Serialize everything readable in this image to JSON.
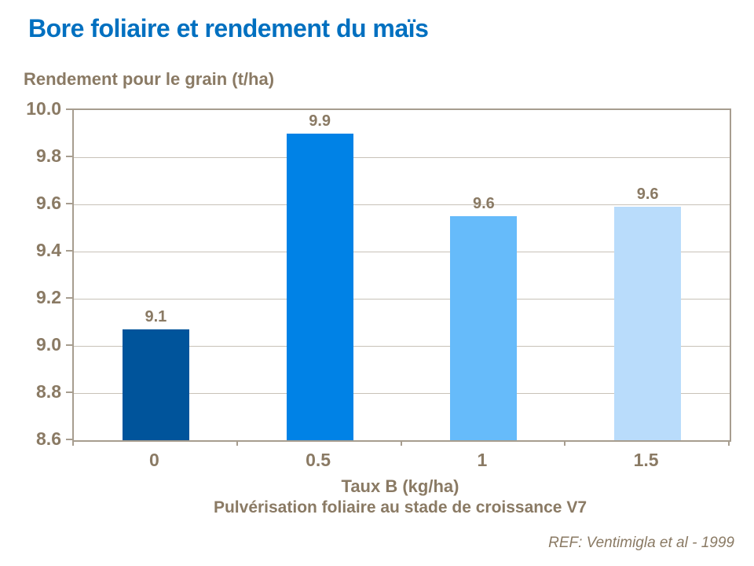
{
  "chart_data": {
    "type": "bar",
    "title": "Bore foliaire et rendement du maïs",
    "y_axis_title": "Rendement pour le grain (t/ha)",
    "x_axis_title": "Taux B (kg/ha)",
    "x_axis_subtitle": "Pulvérisation foliaire au stade de croissance V7",
    "reference": "REF: Ventimigla et al - 1999",
    "categories": [
      "0",
      "0.5",
      "1",
      "1.5"
    ],
    "values": [
      9.07,
      9.9,
      9.55,
      9.59
    ],
    "data_labels": [
      "9.1",
      "9.9",
      "9.6",
      "9.6"
    ],
    "bar_colors": [
      "#00549B",
      "#0082E6",
      "#66BBFA",
      "#B9DCFB"
    ],
    "ylim": [
      8.6,
      10.0
    ],
    "y_ticks": [
      "10.0",
      "9.8",
      "9.6",
      "9.4",
      "9.2",
      "9.0",
      "8.8",
      "8.6"
    ],
    "grid": "horizontal",
    "legend": "none"
  },
  "colors": {
    "title_blue": "#0070C0",
    "text_brown": "#8A7A64",
    "gridline": "#C8C2B8",
    "axis_border": "#A79D8F"
  }
}
